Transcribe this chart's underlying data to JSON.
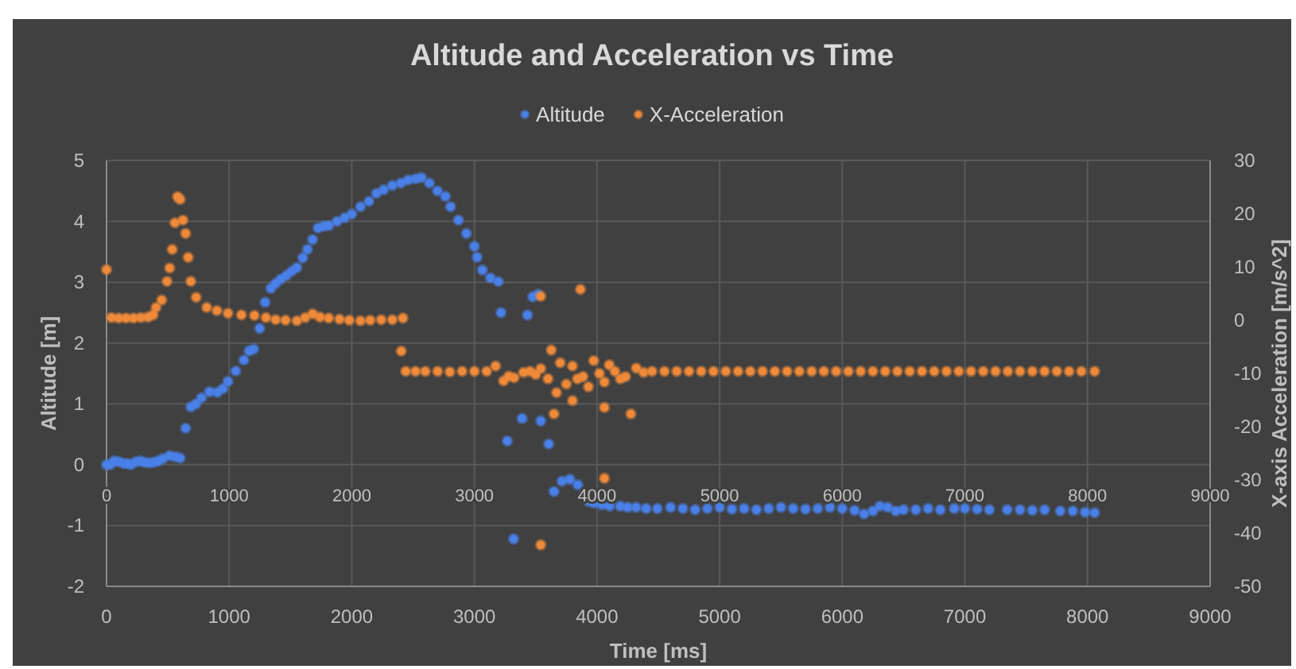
{
  "chart_data": {
    "type": "scatter",
    "title": "Altitude and Acceleration vs Time",
    "xlabel": "Time [ms]",
    "ylabel": "Altitude [m]",
    "y2label": "X-axis Acceleration [m/s^2]",
    "xlim": [
      0,
      9000
    ],
    "xticks": [
      0,
      1000,
      2000,
      3000,
      4000,
      5000,
      6000,
      7000,
      8000,
      9000
    ],
    "x2lim": [
      0,
      9000
    ],
    "x2ticks": [
      0,
      1000,
      2000,
      3000,
      4000,
      5000,
      6000,
      7000,
      8000,
      9000
    ],
    "ylim": [
      -2,
      5
    ],
    "yticks": [
      -2,
      -1,
      0,
      1,
      2,
      3,
      4,
      5
    ],
    "y2lim": [
      -50,
      30
    ],
    "y2ticks": [
      -50,
      -40,
      -30,
      -20,
      -10,
      0,
      10,
      20,
      30
    ],
    "grid": true,
    "legend": "top",
    "marker": "circle",
    "series": [
      {
        "name": "Altitude",
        "color": "#4a80e8",
        "x": [
          0,
          30,
          61,
          100,
          140,
          169,
          200,
          240,
          276,
          310,
          350,
          385,
          420,
          460,
          515,
          560,
          600,
          645,
          687,
          730,
          774,
          839,
          904,
          950,
          990,
          1054,
          1120,
          1163,
          1200,
          1249,
          1293,
          1340,
          1379,
          1420,
          1466,
          1510,
          1552,
          1600,
          1638,
          1680,
          1725,
          1770,
          1812,
          1880,
          1942,
          2000,
          2071,
          2140,
          2201,
          2260,
          2331,
          2400,
          2460,
          2520,
          2568,
          2633,
          2698,
          2763,
          2806,
          2870,
          2935,
          3000,
          3022,
          3065,
          3130,
          3195,
          3217,
          3268,
          3320,
          3389,
          3433,
          3476,
          3519,
          3541,
          3606,
          3649,
          3714,
          3779,
          3843,
          3886,
          3930,
          3973,
          4040,
          4103,
          4189,
          4250,
          4319,
          4400,
          4492,
          4600,
          4700,
          4800,
          4900,
          5000,
          5100,
          5200,
          5300,
          5400,
          5500,
          5600,
          5700,
          5800,
          5900,
          6000,
          6100,
          6178,
          6250,
          6307,
          6370,
          6437,
          6500,
          6600,
          6700,
          6800,
          6913,
          7000,
          7100,
          7200,
          7345,
          7450,
          7550,
          7650,
          7778,
          7880,
          7980,
          8058
        ],
        "values": [
          0,
          0,
          0.06,
          0.05,
          0.02,
          0.02,
          0,
          0.05,
          0.06,
          0.04,
          0.03,
          0.04,
          0.06,
          0.1,
          0.15,
          0.13,
          0.11,
          0.6,
          0.95,
          1,
          1.1,
          1.2,
          1.19,
          1.25,
          1.37,
          1.54,
          1.72,
          1.87,
          1.9,
          2.24,
          2.67,
          2.9,
          2.98,
          3.05,
          3.11,
          3.18,
          3.24,
          3.4,
          3.54,
          3.7,
          3.89,
          3.92,
          3.93,
          4,
          4.06,
          4.12,
          4.24,
          4.33,
          4.46,
          4.52,
          4.59,
          4.63,
          4.68,
          4.7,
          4.72,
          4.63,
          4.5,
          4.41,
          4.24,
          4.02,
          3.8,
          3.59,
          3.41,
          3.2,
          3.07,
          3.01,
          2.5,
          0.39,
          -1.22,
          0.76,
          2.46,
          2.76,
          2.8,
          0.72,
          0.34,
          -0.44,
          -0.27,
          -0.24,
          -0.33,
          -0.5,
          -0.6,
          -0.63,
          -0.66,
          -0.68,
          -0.68,
          -0.7,
          -0.7,
          -0.72,
          -0.72,
          -0.7,
          -0.72,
          -0.74,
          -0.72,
          -0.7,
          -0.73,
          -0.72,
          -0.74,
          -0.72,
          -0.7,
          -0.72,
          -0.73,
          -0.72,
          -0.7,
          -0.72,
          -0.75,
          -0.81,
          -0.76,
          -0.68,
          -0.7,
          -0.76,
          -0.74,
          -0.74,
          -0.72,
          -0.74,
          -0.72,
          -0.72,
          -0.73,
          -0.74,
          -0.74,
          -0.74,
          -0.75,
          -0.74,
          -0.76,
          -0.76,
          -0.78,
          -0.79
        ]
      },
      {
        "name": "X-Acceleration",
        "color": "#ee8a3a",
        "axis": "y2",
        "x": [
          0,
          40,
          100,
          160,
          220,
          280,
          340,
          380,
          404,
          450,
          493,
          515,
          536,
          558,
          579,
          600,
          623,
          645,
          666,
          687,
          731,
          817,
          900,
          990,
          1100,
          1206,
          1300,
          1379,
          1460,
          1552,
          1620,
          1681,
          1740,
          1812,
          1900,
          1980,
          2071,
          2150,
          2240,
          2331,
          2404,
          2417,
          2440,
          2520,
          2600,
          2700,
          2800,
          2900,
          3000,
          3100,
          3173,
          3238,
          3280,
          3324,
          3400,
          3454,
          3500,
          3541,
          3541,
          3541,
          3600,
          3627,
          3649,
          3670,
          3700,
          3750,
          3800,
          3800,
          3840,
          3865,
          3886,
          3930,
          3973,
          4020,
          4060,
          4060,
          4060,
          4100,
          4146,
          4190,
          4233,
          4276,
          4320,
          4380,
          4449,
          4550,
          4650,
          4750,
          4850,
          4950,
          5050,
          5150,
          5250,
          5350,
          5450,
          5550,
          5650,
          5750,
          5850,
          5950,
          6050,
          6150,
          6250,
          6350,
          6450,
          6550,
          6650,
          6750,
          6850,
          6950,
          7050,
          7150,
          7250,
          7350,
          7450,
          7550,
          7650,
          7750,
          7850,
          7950,
          8058
        ],
        "values": [
          9.5,
          0.5,
          0.4,
          0.4,
          0.4,
          0.5,
          0.6,
          1,
          2.4,
          3.8,
          7.3,
          9.8,
          13.3,
          18.3,
          23.2,
          22.7,
          18.8,
          16.3,
          11.8,
          7.3,
          4.3,
          2.4,
          1.8,
          1.3,
          1,
          0.9,
          0.5,
          0.1,
          0,
          -0.1,
          0.5,
          1.2,
          0.6,
          0.4,
          0.2,
          0,
          -0.1,
          0,
          0.1,
          0.1,
          -5.8,
          0.4,
          -9.6,
          -9.6,
          -9.6,
          -9.6,
          -9.7,
          -9.6,
          -9.6,
          -9.6,
          -8.6,
          -11.4,
          -10.5,
          -10.8,
          -9.8,
          -9.6,
          -10.2,
          -9.1,
          4.5,
          -42.2,
          -11,
          -5.6,
          -17.6,
          -13.6,
          -8,
          -12,
          -8.6,
          -15.1,
          -11,
          5.8,
          -10.6,
          -12.5,
          -7.6,
          -10,
          -11.6,
          -16.4,
          -29.7,
          -8.4,
          -9.6,
          -11,
          -10.6,
          -17.6,
          -9,
          -9.8,
          -9.6,
          -9.6,
          -9.6,
          -9.6,
          -9.6,
          -9.6,
          -9.6,
          -9.6,
          -9.6,
          -9.6,
          -9.6,
          -9.6,
          -9.6,
          -9.6,
          -9.6,
          -9.6,
          -9.6,
          -9.6,
          -9.6,
          -9.6,
          -9.6,
          -9.6,
          -9.6,
          -9.6,
          -9.6,
          -9.6,
          -9.6,
          -9.6,
          -9.6,
          -9.6,
          -9.6,
          -9.6,
          -9.6,
          -9.6,
          -9.6,
          -9.6,
          -9.6
        ]
      }
    ]
  }
}
